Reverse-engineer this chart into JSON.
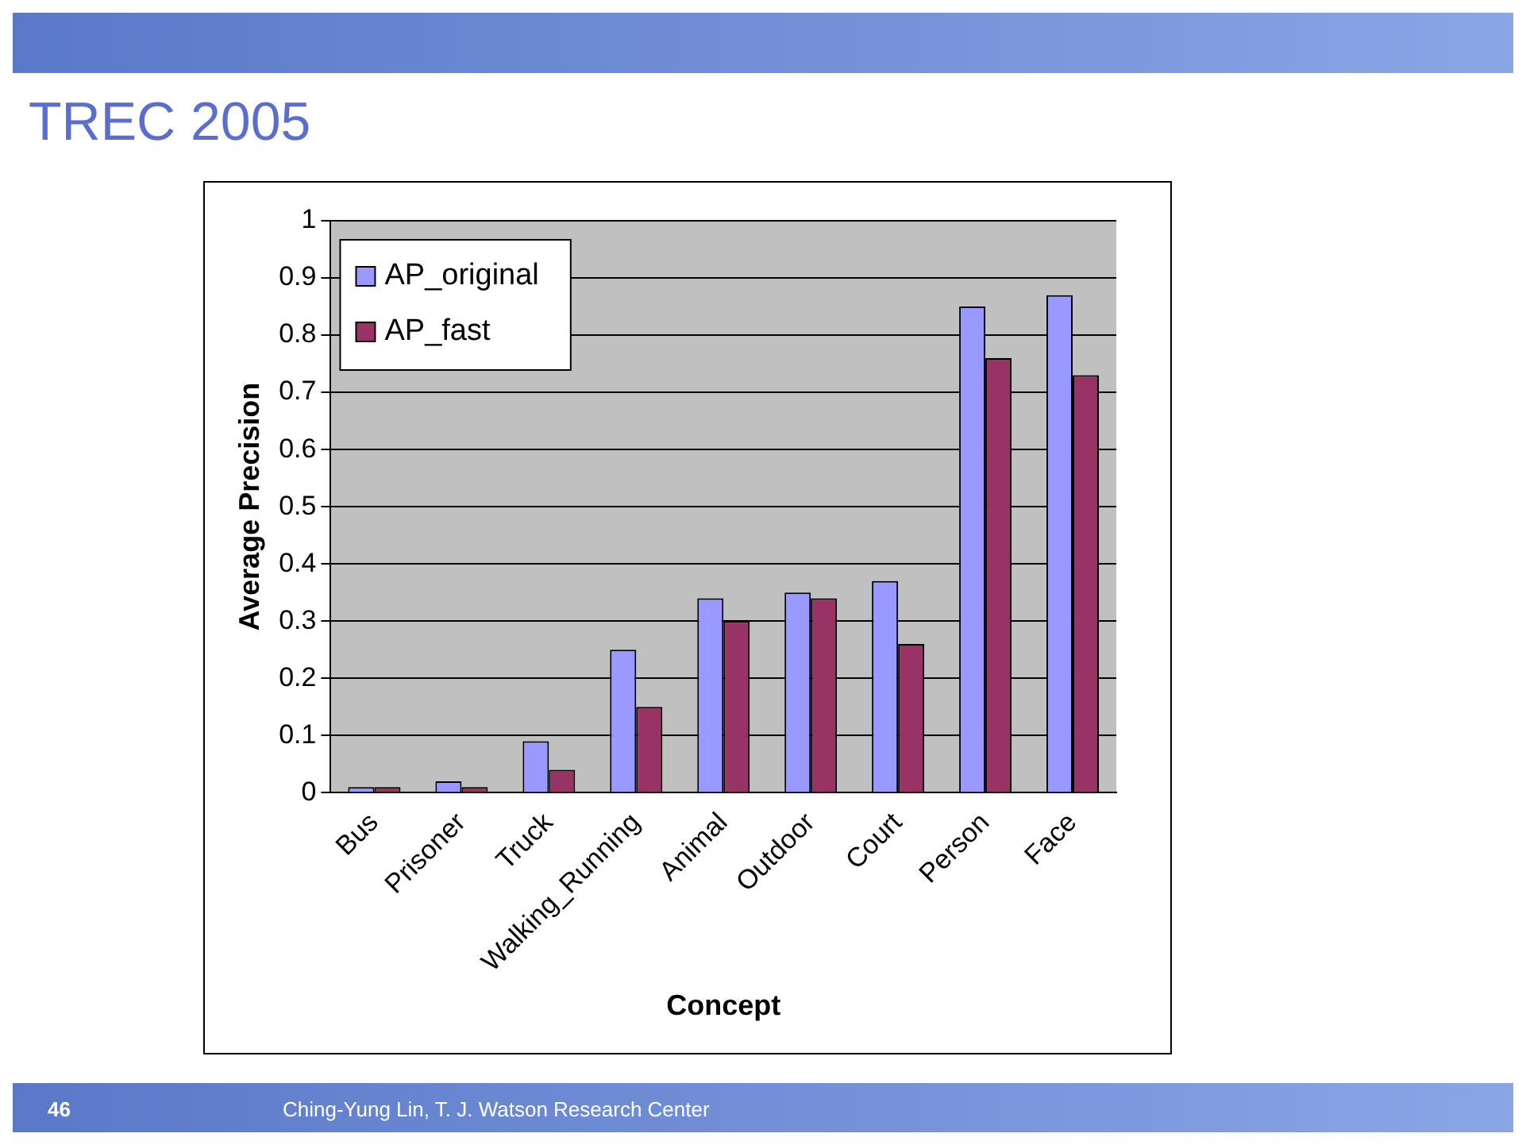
{
  "chart_data": {
    "type": "bar",
    "title": "TREC 2005",
    "xlabel": "Concept",
    "ylabel": "Average Precision",
    "categories": [
      "Bus",
      "Prisoner",
      "Truck",
      "Walking_Running",
      "Animal",
      "Outdoor",
      "Court",
      "Person",
      "Face"
    ],
    "series": [
      {
        "name": "AP_original",
        "color": "#9999ff",
        "values": [
          0.01,
          0.02,
          0.09,
          0.25,
          0.34,
          0.35,
          0.37,
          0.85,
          0.87
        ]
      },
      {
        "name": "AP_fast",
        "color": "#993366",
        "values": [
          0.01,
          0.01,
          0.04,
          0.15,
          0.3,
          0.34,
          0.26,
          0.76,
          0.73
        ]
      }
    ],
    "ylim": [
      0,
      1
    ],
    "yticks": [
      0,
      0.1,
      0.2,
      0.3,
      0.4,
      0.5,
      0.6,
      0.7,
      0.8,
      0.9,
      1
    ],
    "grid": "y",
    "legend": "top left",
    "annotations": [
      "46",
      "Ching-Yung Lin, T. J. Watson Research Center"
    ]
  }
}
